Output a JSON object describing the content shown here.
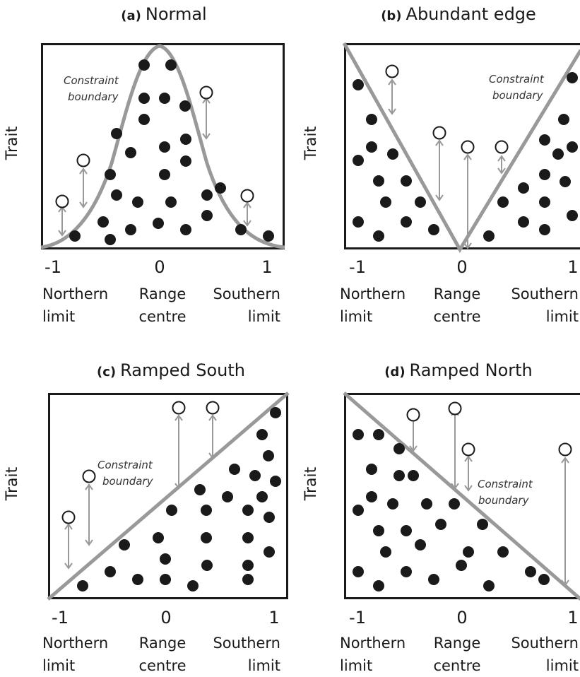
{
  "panels": [
    {
      "id": "a",
      "label": "(a)",
      "title": "Normal",
      "ylabel": "Trait",
      "annotation": [
        "Constraint",
        "boundary"
      ],
      "ticks": [
        "-1",
        "0",
        "1"
      ],
      "x_labels": {
        "left": [
          "Northern",
          "limit"
        ],
        "center": [
          "Range",
          "centre"
        ],
        "right": [
          "Southern",
          "limit"
        ]
      }
    },
    {
      "id": "b",
      "label": "(b)",
      "title": "Abundant edge",
      "ylabel": "Trait",
      "annotation": [
        "Constraint",
        "boundary"
      ],
      "ticks": [
        "-1",
        "0",
        "1"
      ],
      "x_labels": {
        "left": [
          "Northern",
          "limit"
        ],
        "center": [
          "Range",
          "centre"
        ],
        "right": [
          "Southern",
          "limit"
        ]
      }
    },
    {
      "id": "c",
      "label": "(c)",
      "title": "Ramped South",
      "ylabel": "Trait",
      "annotation": [
        "Constraint",
        "boundary"
      ],
      "ticks": [
        "-1",
        "0",
        "1"
      ],
      "x_labels": {
        "left": [
          "Northern",
          "limit"
        ],
        "center": [
          "Range",
          "centre"
        ],
        "right": [
          "Southern",
          "limit"
        ]
      }
    },
    {
      "id": "d",
      "label": "(d)",
      "title": "Ramped North",
      "ylabel": "Trait",
      "annotation": [
        "Constraint",
        "boundary"
      ],
      "ticks": [
        "-1",
        "0",
        "1"
      ],
      "x_labels": {
        "left": [
          "Northern",
          "limit"
        ],
        "center": [
          "Range",
          "centre"
        ],
        "right": [
          "Southern",
          "limit"
        ]
      }
    }
  ],
  "colors": {
    "boundary": "#999999",
    "dot": "#1a1a1a",
    "arrow": "#999999",
    "frame": "#1a1a1a"
  }
}
